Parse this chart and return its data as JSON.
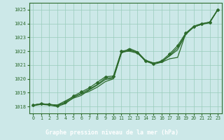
{
  "title": "Graphe pression niveau de la mer (hPa)",
  "bg_color": "#cce8e8",
  "plot_bg_color": "#cce8e8",
  "footer_color": "#2d6b2d",
  "line_color": "#2d6b2d",
  "grid_color": "#99ccbb",
  "text_color": "#2d6b2d",
  "xlim": [
    -0.5,
    23.5
  ],
  "ylim": [
    1017.5,
    1025.5
  ],
  "xticks": [
    0,
    1,
    2,
    3,
    4,
    5,
    6,
    7,
    8,
    9,
    10,
    11,
    12,
    13,
    14,
    15,
    16,
    17,
    18,
    19,
    20,
    21,
    22,
    23
  ],
  "yticks": [
    1018,
    1019,
    1020,
    1021,
    1022,
    1023,
    1024,
    1025
  ],
  "series": [
    [
      1018.1,
      1018.2,
      1018.15,
      1018.1,
      1018.4,
      1018.7,
      1018.9,
      1019.1,
      1019.4,
      1019.8,
      1020.0,
      1021.85,
      1022.2,
      1021.95,
      1021.25,
      1021.15,
      1021.2,
      1021.45,
      1021.55,
      1023.25,
      1023.75,
      1023.95,
      1024.05,
      1025.0
    ],
    [
      1018.1,
      1018.2,
      1018.15,
      1018.1,
      1018.25,
      1018.6,
      1018.8,
      1019.2,
      1019.55,
      1019.95,
      1020.05,
      1021.9,
      1022.05,
      1021.95,
      1021.35,
      1021.15,
      1021.25,
      1021.65,
      1022.1,
      1023.2,
      1023.75,
      1023.95,
      1024.1,
      1025.0
    ],
    [
      1018.1,
      1018.2,
      1018.15,
      1018.05,
      1018.3,
      1018.75,
      1019.05,
      1019.35,
      1019.75,
      1020.15,
      1020.2,
      1022.0,
      1022.1,
      1021.9,
      1021.3,
      1021.1,
      1021.3,
      1021.8,
      1022.4,
      1023.3,
      1023.8,
      1024.0,
      1024.1,
      1025.0
    ],
    [
      1018.05,
      1018.15,
      1018.1,
      1018.0,
      1018.2,
      1018.65,
      1018.95,
      1019.25,
      1019.6,
      1020.05,
      1020.1,
      1021.95,
      1022.0,
      1021.85,
      1021.3,
      1021.05,
      1021.2,
      1021.7,
      1022.25,
      1023.25,
      1023.75,
      1023.95,
      1024.1,
      1025.0
    ]
  ],
  "marker_series_idx": 2
}
